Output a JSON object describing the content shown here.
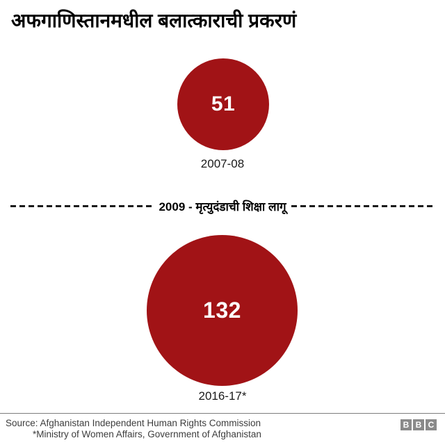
{
  "header": {
    "title": "अफगाणिस्तानमधील बलात्काराची प्रकरणं"
  },
  "chart_data": {
    "type": "bubble",
    "title": "अफगाणिस्तानमधील बलात्काराची प्रकरणं",
    "categories": [
      "2007-08",
      "2016-17*"
    ],
    "values": [
      51,
      132
    ],
    "annotation": "2009 - मृत्युदंडाची शिक्षा लागू",
    "bubble_color": "#a11316",
    "value_text_color": "#ffffff",
    "layout": "vertical, circles area-proportional to values, dashed event line between circles"
  },
  "separator": {
    "label": "2009 - मृत्युदंडाची शिक्षा लागू"
  },
  "footer": {
    "source_line1": "Source: Afghanistan Independent Human Rights Commission",
    "source_line2": "*Ministry of Women Affairs, Government of Afghanistan",
    "logo": {
      "letters": [
        "B",
        "B",
        "C"
      ],
      "block_color": "#8a8a8a"
    }
  }
}
